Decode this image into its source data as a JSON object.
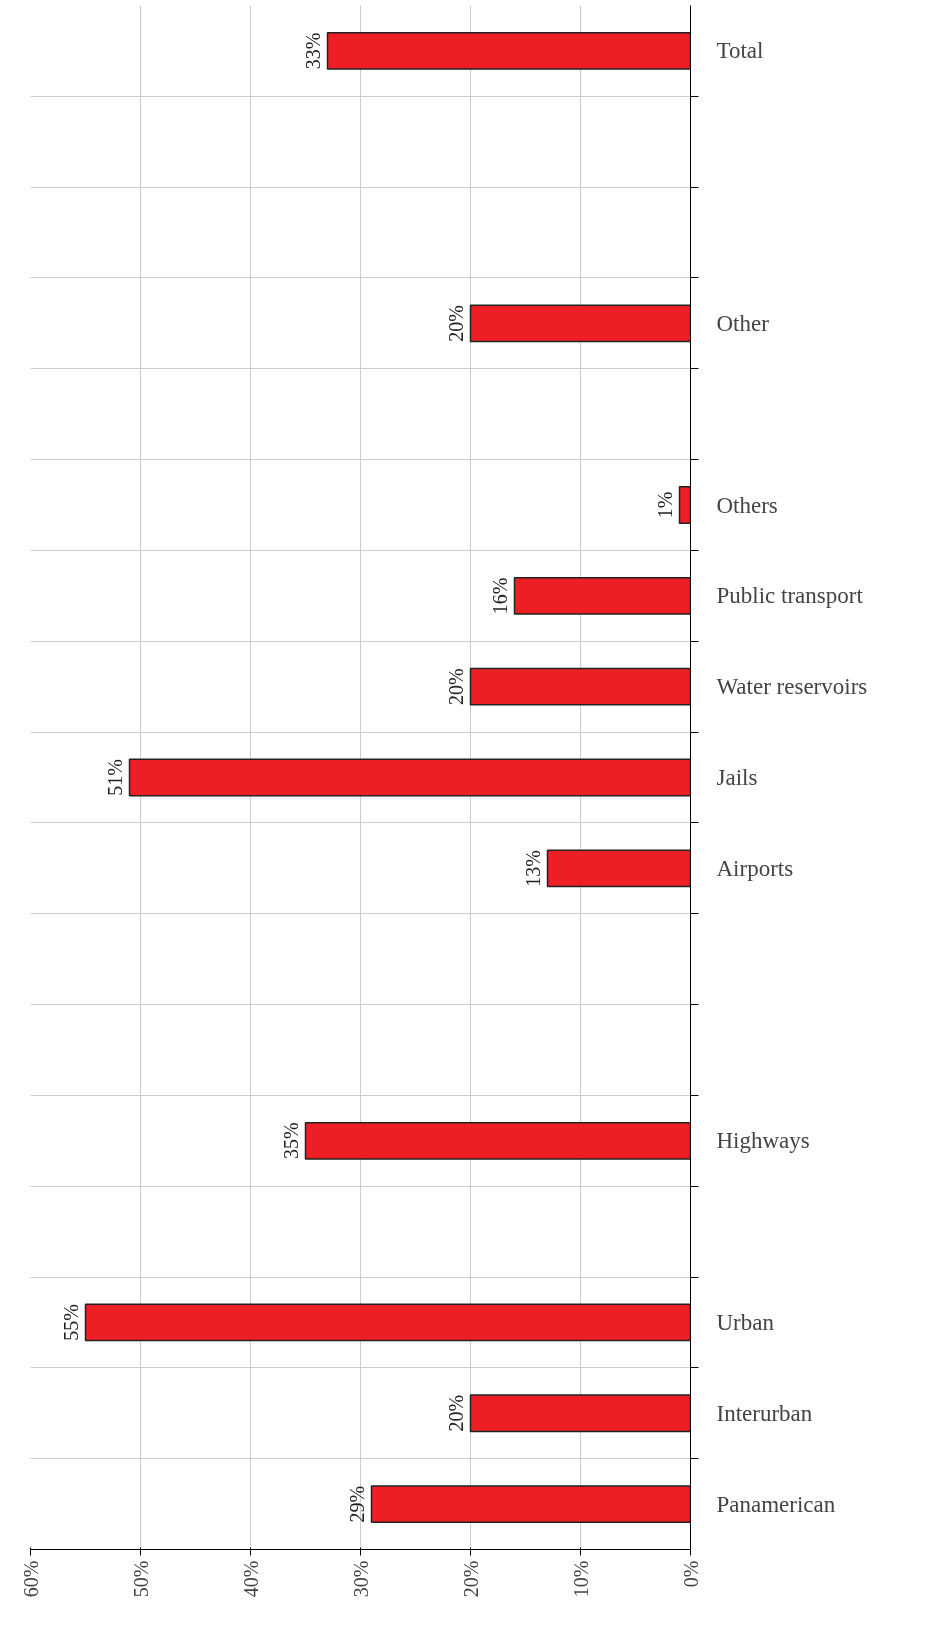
{
  "chart_data": {
    "type": "bar",
    "orientation": "horizontal",
    "categories": [
      "Total",
      null,
      null,
      "Other",
      null,
      "Others",
      "Public transport",
      "Water reservoirs",
      "Jails",
      "Airports",
      null,
      null,
      "Highways",
      null,
      "Urban",
      "Interurban",
      "Panamerican"
    ],
    "values": [
      33,
      null,
      null,
      20,
      null,
      1,
      16,
      20,
      51,
      13,
      null,
      null,
      35,
      null,
      55,
      20,
      29
    ],
    "value_labels": [
      "33%",
      null,
      null,
      "20%",
      null,
      "1%",
      "16%",
      "20%",
      "51%",
      "13%",
      null,
      null,
      "35%",
      null,
      "55%",
      "20%",
      "29%"
    ],
    "color": "#ee1f24",
    "xlim": [
      60,
      0
    ],
    "xticks": [
      {
        "value": 60,
        "label": "60%"
      },
      {
        "value": 50,
        "label": "50%"
      },
      {
        "value": 40,
        "label": "40%"
      },
      {
        "value": 30,
        "label": "30%"
      },
      {
        "value": 20,
        "label": "20%"
      },
      {
        "value": 10,
        "label": "10%"
      },
      {
        "value": 0,
        "label": "0%"
      }
    ],
    "grid": true
  }
}
